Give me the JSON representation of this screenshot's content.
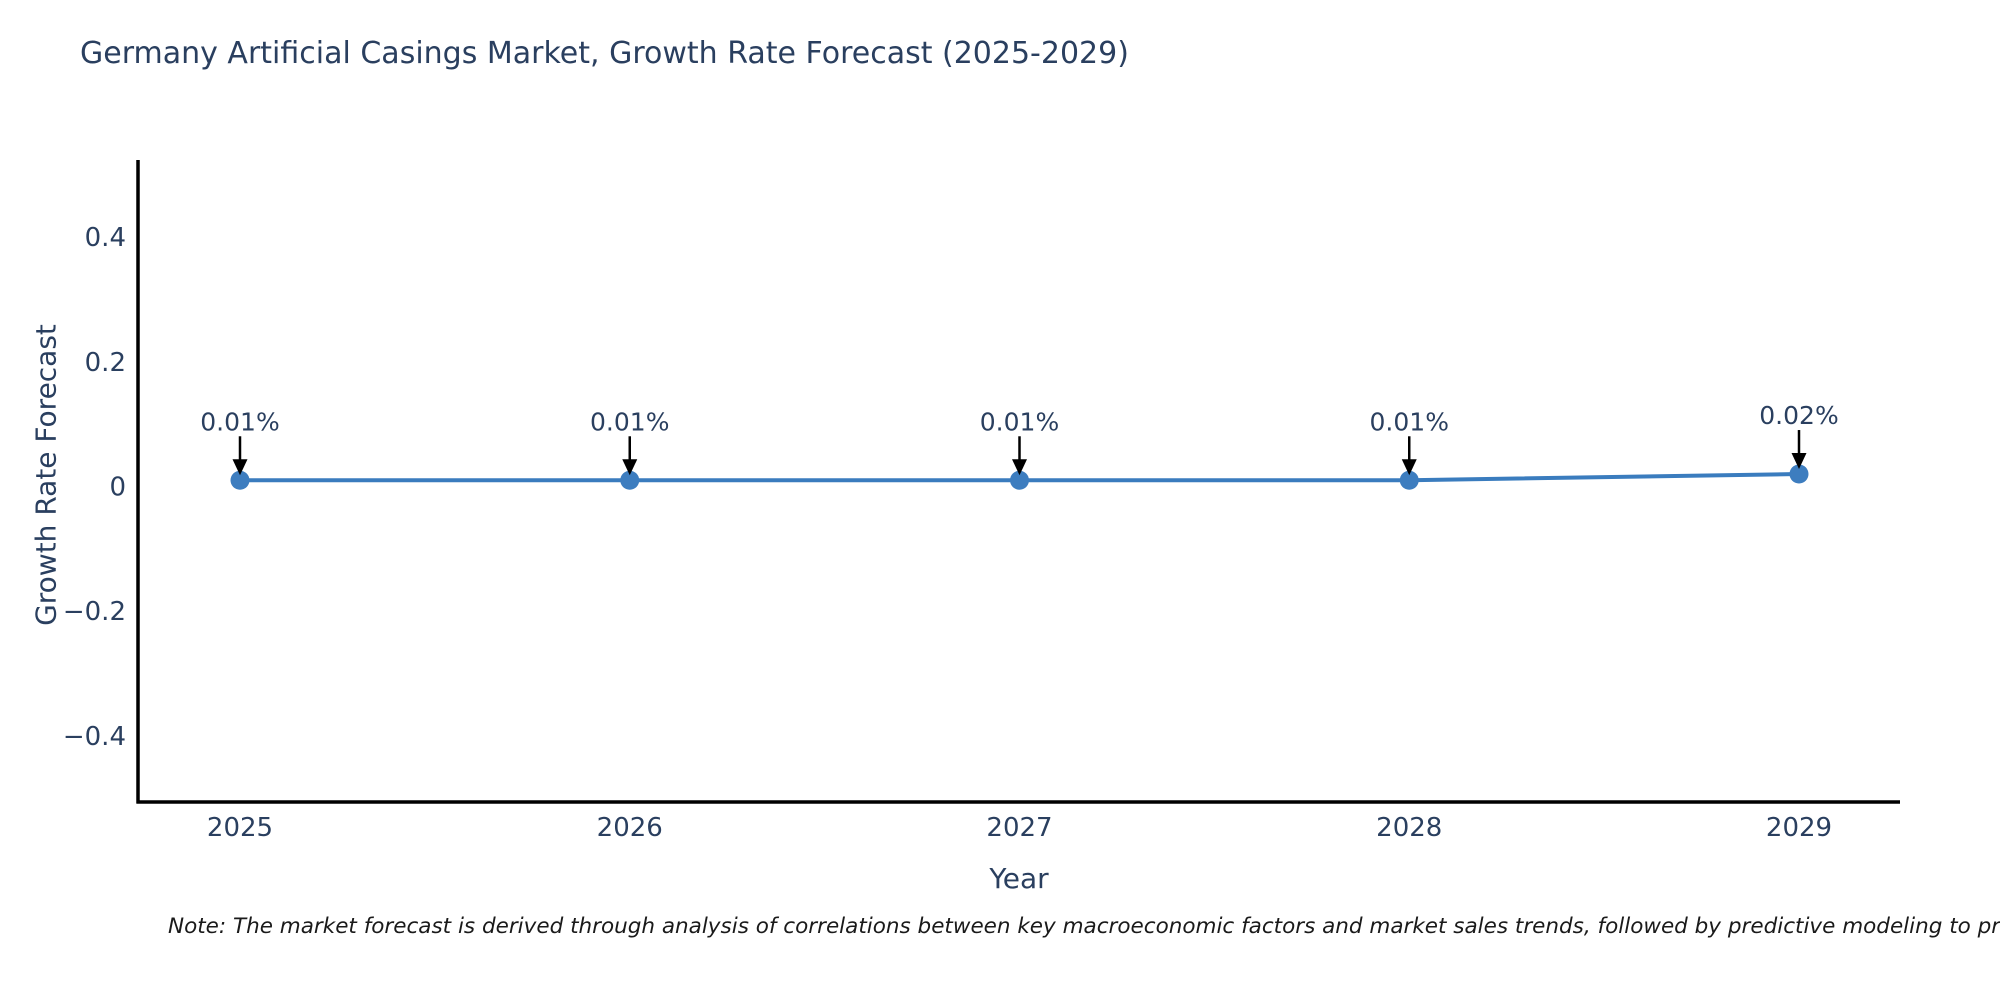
{
  "chart_data": {
    "type": "line",
    "title": "Germany Artificial Casings Market, Growth Rate Forecast (2025-2029)",
    "xlabel": "Year",
    "ylabel": "Growth Rate Forecast",
    "x": [
      2025,
      2026,
      2027,
      2028,
      2029
    ],
    "values": [
      0.01,
      0.01,
      0.01,
      0.01,
      0.02
    ],
    "point_labels": [
      "0.01%",
      "0.01%",
      "0.01%",
      "0.01%",
      "0.02%"
    ],
    "xtick_labels": [
      "2025",
      "2026",
      "2027",
      "2028",
      "2029"
    ],
    "yticks": [
      0.4,
      0.2,
      0,
      -0.2,
      -0.4
    ],
    "ytick_labels": [
      "0.4",
      "0.2",
      "0",
      "−0.2",
      "−0.4"
    ],
    "ylim": [
      -0.51,
      0.53
    ],
    "grid": false,
    "legend_position": "none",
    "line_color": "#3a7cbe",
    "marker_color": "#3d7dbf",
    "arrow_color": "#000000",
    "axis_color": "#000000",
    "text_color": "#2a3f5f"
  },
  "note": {
    "text": "Note: The market forecast is derived through analysis of correlations between key macroeconomic factors and market sales trends, followed by predictive modeling to project future sa"
  }
}
